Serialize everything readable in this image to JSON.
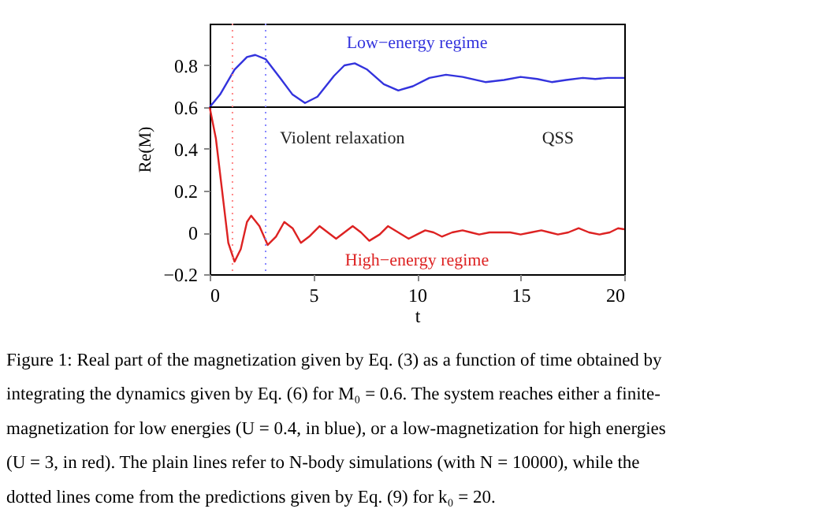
{
  "chart_data": {
    "type": "line",
    "xlabel": "t",
    "ylabel": "Re(M)",
    "xlim": [
      0,
      20
    ],
    "xticks": [
      0,
      5,
      10,
      15,
      20
    ],
    "ylim": [
      -0.2,
      1.0
    ],
    "yticks": [
      -0.2,
      0,
      0.2,
      0.4,
      0.6,
      0.8
    ],
    "grid": false,
    "series": [
      {
        "name": "Low−energy regime",
        "color": "#3333dd",
        "x": [
          0,
          0.5,
          1.2,
          1.8,
          2.2,
          2.7,
          3.4,
          4.0,
          4.6,
          5.2,
          6.0,
          6.5,
          7.0,
          7.6,
          8.4,
          9.1,
          9.8,
          10.6,
          11.4,
          12.2,
          13.3,
          14.2,
          15.0,
          15.8,
          16.5,
          17.2,
          18.0,
          18.6,
          19.2,
          20
        ],
        "values": [
          0.6,
          0.66,
          0.78,
          0.84,
          0.85,
          0.83,
          0.74,
          0.66,
          0.62,
          0.65,
          0.75,
          0.8,
          0.81,
          0.78,
          0.71,
          0.68,
          0.7,
          0.74,
          0.755,
          0.745,
          0.72,
          0.73,
          0.745,
          0.735,
          0.72,
          0.73,
          0.74,
          0.735,
          0.74,
          0.74
        ]
      },
      {
        "name": "High−energy regime",
        "color": "#dd2222",
        "x": [
          0,
          0.3,
          0.6,
          0.9,
          1.2,
          1.5,
          1.8,
          2.0,
          2.4,
          2.8,
          3.2,
          3.6,
          4.0,
          4.4,
          4.8,
          5.3,
          5.7,
          6.1,
          6.5,
          6.9,
          7.3,
          7.7,
          8.2,
          8.6,
          9.1,
          9.6,
          10.0,
          10.4,
          10.8,
          11.2,
          11.7,
          12.2,
          12.6,
          13.0,
          13.5,
          14.0,
          14.5,
          15.0,
          15.5,
          16.0,
          16.4,
          16.8,
          17.3,
          17.8,
          18.3,
          18.8,
          19.3,
          19.7,
          20
        ],
        "values": [
          0.6,
          0.45,
          0.2,
          -0.05,
          -0.14,
          -0.08,
          0.05,
          0.08,
          0.03,
          -0.06,
          -0.02,
          0.05,
          0.02,
          -0.05,
          -0.02,
          0.03,
          0.0,
          -0.03,
          0.0,
          0.03,
          0.0,
          -0.04,
          -0.01,
          0.03,
          0.0,
          -0.03,
          -0.01,
          0.01,
          0.0,
          -0.02,
          0.0,
          0.01,
          0.0,
          -0.01,
          0.0,
          0.0,
          0.0,
          -0.01,
          0.0,
          0.01,
          0.0,
          -0.01,
          0.0,
          0.02,
          0.0,
          -0.01,
          0.0,
          0.02,
          0.015
        ]
      }
    ],
    "ref_lines": [
      {
        "axis": "y",
        "value": 0.6,
        "color": "#000000",
        "line_style": "solid"
      },
      {
        "axis": "x",
        "value": 1.1,
        "color": "#ff8888",
        "line_style": "dotted"
      },
      {
        "axis": "x",
        "value": 2.7,
        "color": "#8888ff",
        "line_style": "dotted"
      }
    ],
    "annotations": [
      "Violent relaxation",
      "QSS",
      "Figure 1: Real part of the magnetization given by Eq. (3) as a function of time obtained by integrating the dynamics given by Eq. (6) for M₀ = 0.6. The system reaches either a finite-magnetization for low energies (U = 0.4, in blue), or a low-magnetization for high energies (U = 3, in red). The plain lines refer to N-body simulations (with N = 10000), while the dotted lines come from the predictions given by Eq. (9) for k₀ = 20."
    ]
  }
}
